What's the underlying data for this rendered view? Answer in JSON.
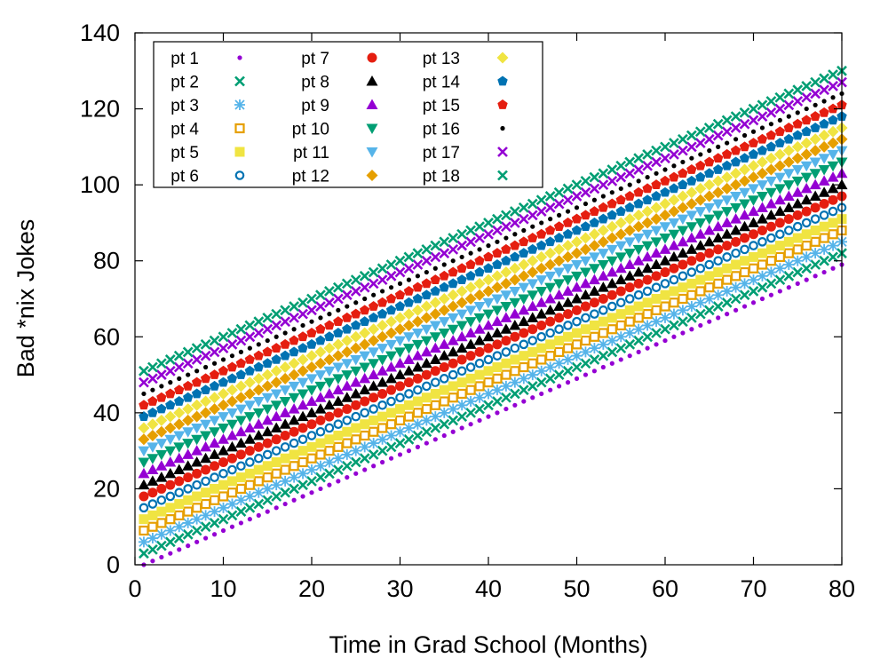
{
  "chart_data": {
    "type": "scatter",
    "title": "",
    "xlabel": "Time in Grad School (Months)",
    "ylabel": "Bad *nix Jokes",
    "xlim": [
      0,
      80
    ],
    "ylim": [
      0,
      140
    ],
    "x_ticks": [
      "0",
      "10",
      "20",
      "30",
      "40",
      "50",
      "60",
      "70",
      "80"
    ],
    "y_ticks": [
      "0",
      "20",
      "40",
      "60",
      "80",
      "100",
      "120",
      "140"
    ],
    "grid": false,
    "legend_position": "top-left",
    "x": [
      1,
      2,
      3,
      4,
      5,
      6,
      7,
      8,
      9,
      10,
      11,
      12,
      13,
      14,
      15,
      16,
      17,
      18,
      19,
      20,
      21,
      22,
      23,
      24,
      25,
      26,
      27,
      28,
      29,
      30,
      31,
      32,
      33,
      34,
      35,
      36,
      37,
      38,
      39,
      40,
      41,
      42,
      43,
      44,
      45,
      46,
      47,
      48,
      49,
      50,
      51,
      52,
      53,
      54,
      55,
      56,
      57,
      58,
      59,
      60,
      61,
      62,
      63,
      64,
      65,
      66,
      67,
      68,
      69,
      70,
      71,
      72,
      73,
      74,
      75,
      76,
      77,
      78,
      79,
      80
    ],
    "slope": 1,
    "series": [
      {
        "name": "pt 1",
        "start": 0,
        "color": "#9400d3",
        "marker": "dot"
      },
      {
        "name": "pt 2",
        "start": 3,
        "color": "#009e73",
        "marker": "cross"
      },
      {
        "name": "pt 3",
        "start": 6,
        "color": "#56b4e9",
        "marker": "asterisk"
      },
      {
        "name": "pt 4",
        "start": 9,
        "color": "#e69f00",
        "marker": "square-open"
      },
      {
        "name": "pt 5",
        "start": 12,
        "color": "#f0e442",
        "marker": "square"
      },
      {
        "name": "pt 6",
        "start": 15,
        "color": "#0072b2",
        "marker": "circle-open"
      },
      {
        "name": "pt 7",
        "start": 18,
        "color": "#e51e10",
        "marker": "circle"
      },
      {
        "name": "pt 8",
        "start": 21,
        "color": "#000000",
        "marker": "triangle"
      },
      {
        "name": "pt 9",
        "start": 24,
        "color": "#9400d3",
        "marker": "triangle"
      },
      {
        "name": "pt 10",
        "start": 27,
        "color": "#009e73",
        "marker": "triangle-down"
      },
      {
        "name": "pt 11",
        "start": 30,
        "color": "#56b4e9",
        "marker": "triangle-down"
      },
      {
        "name": "pt 12",
        "start": 33,
        "color": "#e69f00",
        "marker": "diamond"
      },
      {
        "name": "pt 13",
        "start": 36,
        "color": "#f0e442",
        "marker": "diamond"
      },
      {
        "name": "pt 14",
        "start": 39,
        "color": "#0072b2",
        "marker": "pentagon"
      },
      {
        "name": "pt 15",
        "start": 42,
        "color": "#e51e10",
        "marker": "pentagon"
      },
      {
        "name": "pt 16",
        "start": 45,
        "color": "#000000",
        "marker": "dot"
      },
      {
        "name": "pt 17",
        "start": 48,
        "color": "#9400d3",
        "marker": "cross"
      },
      {
        "name": "pt 18",
        "start": 51,
        "color": "#009e73",
        "marker": "cross"
      }
    ]
  }
}
